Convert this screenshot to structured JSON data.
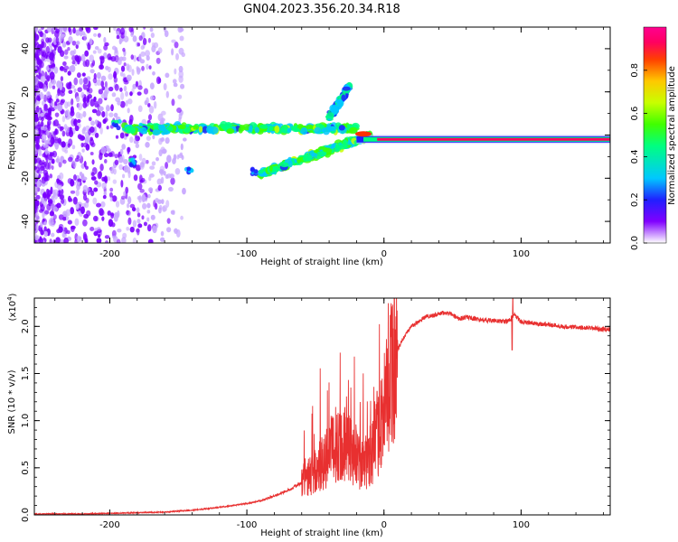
{
  "title": "GN04.2023.356.20.34.R18",
  "chart_data": [
    {
      "type": "heatmap",
      "xlabel": "Height of straight line (km)",
      "ylabel": "Frequency (Hz)",
      "xlim": [
        -255,
        165
      ],
      "ylim": [
        -50,
        50
      ],
      "xticks": [
        -200,
        -100,
        0,
        100
      ],
      "yticks": [
        -40,
        -20,
        0,
        20,
        40
      ],
      "colorbar": {
        "label": "Normalized spectral amplitude",
        "range": [
          0,
          1
        ],
        "ticks": [
          "0.0",
          "0.2",
          "0.4",
          "0.6",
          "0.8"
        ],
        "ticks_values": [
          0,
          0.2,
          0.4,
          0.6,
          0.8
        ],
        "colors": [
          "#ffffff",
          "#8000ff",
          "#2020ff",
          "#00c8ff",
          "#00ff80",
          "#40ff00",
          "#c8ff00",
          "#ffc800",
          "#ff4000",
          "#ff0060",
          "#ff0090"
        ]
      },
      "features": [
        {
          "name": "main-line",
          "x": [
            0,
            165
          ],
          "y": -2,
          "amplitude": 0.9
        },
        {
          "name": "upper-arm",
          "x": [
            -190,
            -20
          ],
          "y": [
            3,
            3
          ],
          "amplitude": 0.4
        },
        {
          "name": "rising-branch",
          "x": [
            -40,
            -25
          ],
          "y": [
            8,
            23
          ],
          "amplitude": 0.3
        },
        {
          "name": "falling-branch",
          "x": [
            -90,
            -10
          ],
          "y": [
            -18,
            0
          ],
          "amplitude": 0.4
        }
      ]
    },
    {
      "type": "line",
      "xlabel": "Height of straight line (km)",
      "ylabel": "SNR (10 * v/v)",
      "exponent_label": "(x10",
      "exponent_power": "4",
      "exponent_close": ")",
      "xlim": [
        -255,
        165
      ],
      "ylim": [
        0,
        2.3
      ],
      "xticks": [
        -200,
        -100,
        0,
        100
      ],
      "yticks": [
        "0.0",
        "0.5",
        "1.0",
        "1.5",
        "2.0"
      ],
      "yticks_values": [
        0,
        0.5,
        1.0,
        1.5,
        2.0
      ],
      "color": "#e83030",
      "series": [
        {
          "x": [
            -255,
            -220,
            -190,
            -160,
            -140,
            -120,
            -100,
            -90,
            -80,
            -70,
            -60,
            -50,
            -45,
            -40,
            -35,
            -30,
            -25,
            -20,
            -15,
            -10,
            -5,
            0,
            5,
            10,
            15,
            20,
            25,
            30,
            40,
            45,
            50,
            55,
            60,
            70,
            80,
            90,
            95,
            100,
            110,
            120,
            130,
            140,
            150,
            160,
            165
          ],
          "y": [
            0.01,
            0.01,
            0.02,
            0.03,
            0.05,
            0.08,
            0.12,
            0.15,
            0.2,
            0.26,
            0.34,
            0.45,
            0.55,
            0.65,
            0.75,
            0.8,
            0.7,
            0.6,
            0.5,
            0.65,
            0.85,
            1.1,
            1.45,
            1.75,
            1.9,
            2.0,
            2.05,
            2.1,
            2.13,
            2.15,
            2.12,
            2.08,
            2.1,
            2.07,
            2.06,
            2.05,
            2.12,
            2.05,
            2.03,
            2.02,
            2.0,
            1.99,
            1.98,
            1.97,
            1.97
          ]
        }
      ]
    }
  ]
}
